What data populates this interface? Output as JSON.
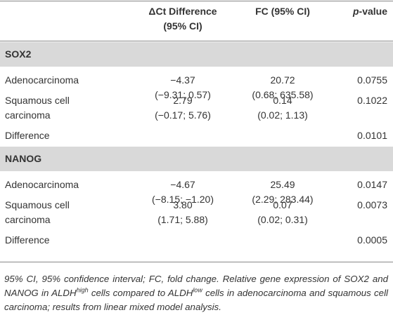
{
  "header": {
    "columns": [
      [
        "ΔCt Difference",
        "(95% CI)"
      ],
      [
        "FC (95% CI)"
      ]
    ],
    "p_value": {
      "italic": "p",
      "text": "-value"
    }
  },
  "sections": [
    {
      "title": "SOX2",
      "rows": [
        {
          "label": [
            "Adenocarcinoma"
          ],
          "delta_ct": [
            "−4.37",
            "(−9.31; 0.57)"
          ],
          "fc": [
            "20.72",
            "(0.68; 635.58)"
          ],
          "p_value": "0.0755"
        },
        {
          "label": [
            "Squamous cell",
            "carcinoma"
          ],
          "delta_ct": [
            "2.79",
            "(−0.17; 5.76)"
          ],
          "fc": [
            "0.14",
            "(0.02; 1.13)"
          ],
          "p_value": "0.1022"
        },
        {
          "label": [
            "Difference"
          ],
          "p_value": "0.0101"
        }
      ]
    },
    {
      "title": "NANOG",
      "rows": [
        {
          "label": [
            "Adenocarcinoma"
          ],
          "delta_ct": [
            "−4.67",
            "(−8.15; −1.20)"
          ],
          "fc": [
            "25.49",
            "(2.29; 283.44)"
          ],
          "p_value": "0.0147"
        },
        {
          "label": [
            "Squamous cell",
            "carcinoma"
          ],
          "delta_ct": [
            "3.80",
            "(1.71; 5.88)"
          ],
          "fc": [
            "0.07",
            "(0.02; 0.31)"
          ],
          "p_value": "0.0073"
        },
        {
          "label": [
            "Difference"
          ],
          "p_value": "0.0005"
        }
      ]
    }
  ],
  "footnote": [
    "95% CI, 95% confidence interval; FC, fold change. Relative gene expression of SOX2 and NANOG in ALDH",
    "high",
    " cells compared to ALDH",
    "low",
    " cells in adenocarcinoma and squamous cell carcinoma; results from linear mixed model analysis."
  ]
}
